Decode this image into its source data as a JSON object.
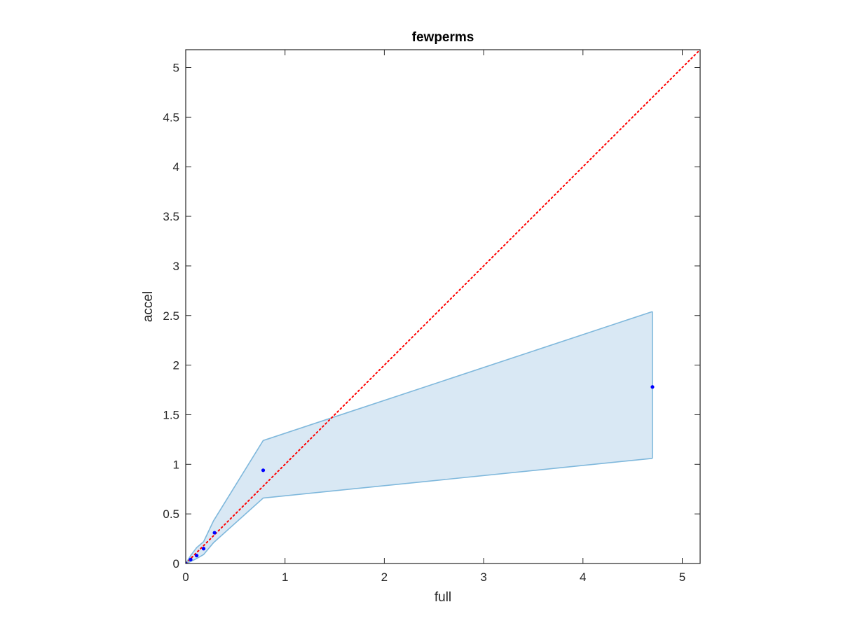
{
  "chart_data": {
    "type": "line",
    "title": "fewperms",
    "xlabel": "full",
    "ylabel": "accel",
    "xlim": [
      0,
      5.18
    ],
    "ylim": [
      0,
      5.18
    ],
    "x_ticks": [
      0,
      1,
      2,
      3,
      4,
      5
    ],
    "x_tick_labels": [
      "0",
      "1",
      "2",
      "3",
      "4",
      "5"
    ],
    "y_ticks": [
      0,
      0.5,
      1,
      1.5,
      2,
      2.5,
      3,
      3.5,
      4,
      4.5,
      5
    ],
    "y_tick_labels": [
      "0",
      "0.5",
      "1",
      "1.5",
      "2",
      "2.5",
      "3",
      "3.5",
      "4",
      "4.5",
      "5"
    ],
    "grid": false,
    "legend": "none",
    "series": [
      {
        "kind": "band",
        "color": "#7fb8dc",
        "fill": "#d9e8f4",
        "x": [
          0,
          0.05,
          0.11,
          0.18,
          0.28,
          0.78,
          4.7
        ],
        "upper": [
          0,
          0.08,
          0.16,
          0.22,
          0.43,
          1.24,
          2.54
        ],
        "lower": [
          0,
          0.02,
          0.05,
          0.09,
          0.21,
          0.66,
          1.06
        ]
      },
      {
        "kind": "points",
        "color": "#0000ff",
        "x": [
          0,
          0.05,
          0.11,
          0.18,
          0.29,
          0.78,
          4.7
        ],
        "y": [
          0,
          0.04,
          0.08,
          0.15,
          0.31,
          0.94,
          1.78
        ]
      },
      {
        "kind": "reference",
        "color": "#ff0000",
        "style": "dotted",
        "x": [
          0,
          5.18
        ],
        "y": [
          0,
          5.18
        ]
      }
    ]
  }
}
